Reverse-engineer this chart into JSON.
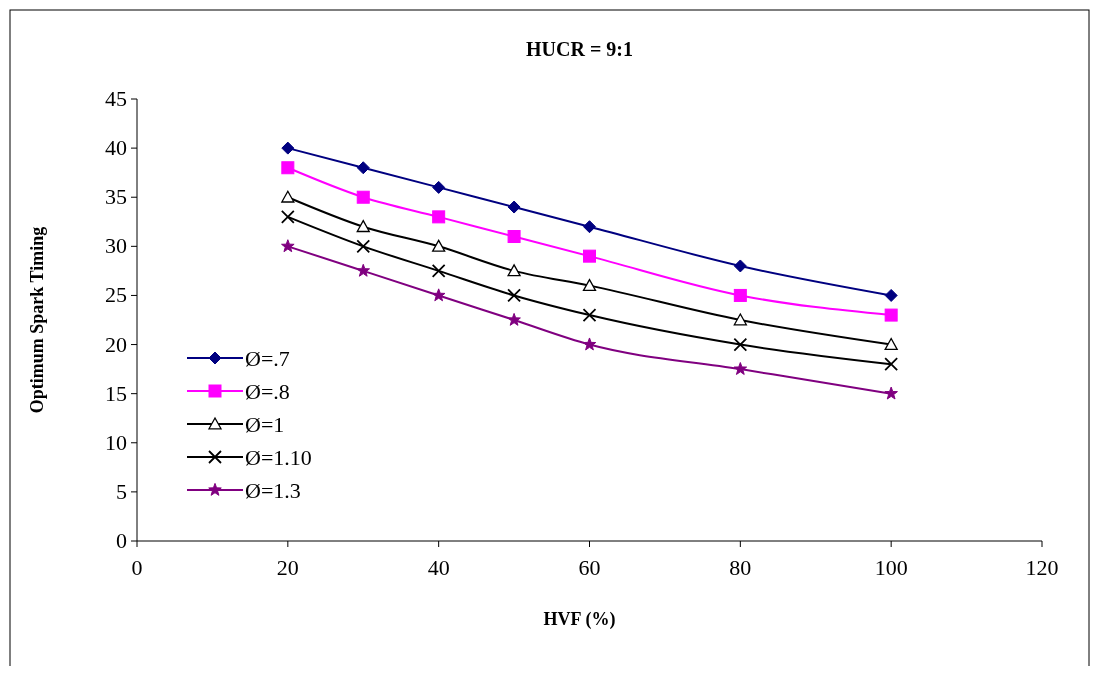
{
  "chart_data": {
    "type": "line",
    "title": "HUCR = 9:1",
    "xlabel": "HVF (%)",
    "ylabel": "Optimum Spark Timing",
    "x": [
      20,
      30,
      40,
      50,
      60,
      80,
      100
    ],
    "series": [
      {
        "name": "Ø=.7",
        "color": "#000080",
        "marker": "diamond",
        "values": [
          40,
          38,
          36,
          34,
          32,
          28,
          25
        ]
      },
      {
        "name": "Ø=.8",
        "color": "#ff00ff",
        "marker": "square",
        "values": [
          38,
          35,
          33,
          31,
          29,
          25,
          23
        ]
      },
      {
        "name": "Ø=1",
        "color": "#000000",
        "marker": "triangle",
        "values": [
          35,
          32,
          30,
          27.5,
          26,
          22.5,
          20
        ]
      },
      {
        "name": "Ø=1.10",
        "color": "#000000",
        "marker": "cross",
        "values": [
          33,
          30,
          27.5,
          25,
          23,
          20,
          18
        ]
      },
      {
        "name": "Ø=1.3",
        "color": "#800080",
        "marker": "star",
        "values": [
          30,
          27.5,
          25,
          22.5,
          20,
          17.5,
          15
        ]
      }
    ],
    "xlim": [
      0,
      120
    ],
    "xticks": [
      0,
      20,
      40,
      60,
      80,
      100,
      120
    ],
    "ylim": [
      0,
      45
    ],
    "yticks": [
      0,
      5,
      10,
      15,
      20,
      25,
      30,
      35,
      40,
      45
    ],
    "grid": false,
    "legend": "bottom left",
    "line_style": "solid"
  }
}
